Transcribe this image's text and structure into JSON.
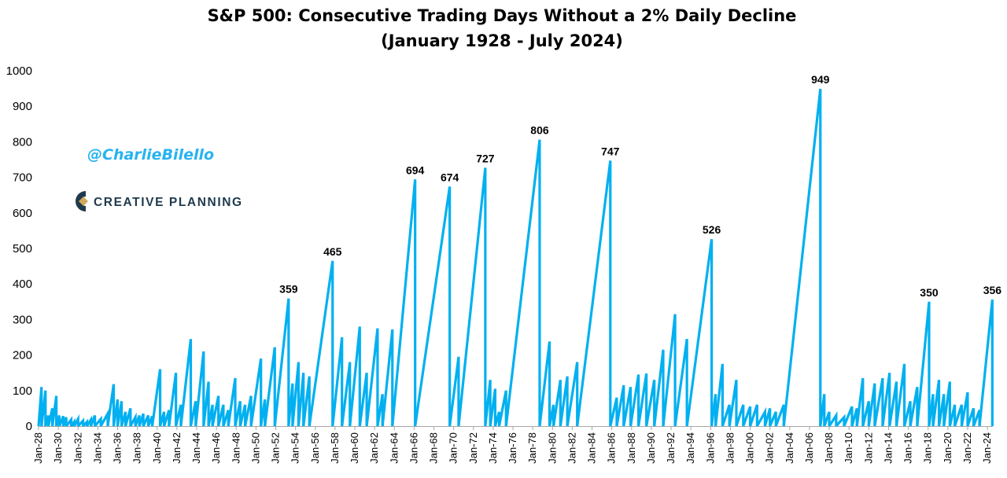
{
  "chart_data": {
    "type": "line",
    "title": "S&P 500: Consecutive Trading Days Without a 2% Daily Decline",
    "subtitle": "(January 1928 - July 2024)",
    "xlabel": "",
    "ylabel": "",
    "ylim": [
      0,
      1000
    ],
    "yticks": [
      0,
      100,
      200,
      300,
      400,
      500,
      600,
      700,
      800,
      900,
      1000
    ],
    "xlim": [
      1928.0,
      2024.55
    ],
    "xtick_labels": [
      "Jan-28",
      "Jan-30",
      "Jan-32",
      "Jan-34",
      "Jan-36",
      "Jan-38",
      "Jan-40",
      "Jan-42",
      "Jan-44",
      "Jan-46",
      "Jan-48",
      "Jan-50",
      "Jan-52",
      "Jan-54",
      "Jan-56",
      "Jan-58",
      "Jan-60",
      "Jan-62",
      "Jan-64",
      "Jan-66",
      "Jan-68",
      "Jan-70",
      "Jan-72",
      "Jan-74",
      "Jan-76",
      "Jan-78",
      "Jan-80",
      "Jan-82",
      "Jan-84",
      "Jan-86",
      "Jan-88",
      "Jan-90",
      "Jan-92",
      "Jan-94",
      "Jan-96",
      "Jan-98",
      "Jan-00",
      "Jan-02",
      "Jan-04",
      "Jan-06",
      "Jan-08",
      "Jan-10",
      "Jan-12",
      "Jan-14",
      "Jan-16",
      "Jan-18",
      "Jan-20",
      "Jan-22",
      "Jan-24"
    ],
    "color": "#00b0f0",
    "grid": false,
    "legend": "none",
    "series": [
      {
        "name": "Consecutive Trading Days Without a 2% Daily Decline",
        "peak_labels": [
          {
            "x": 1953.3,
            "value": 359
          },
          {
            "x": 1957.75,
            "value": 465
          },
          {
            "x": 1966.1,
            "value": 694
          },
          {
            "x": 1969.6,
            "value": 674
          },
          {
            "x": 1973.2,
            "value": 727
          },
          {
            "x": 1978.7,
            "value": 806
          },
          {
            "x": 1985.85,
            "value": 747
          },
          {
            "x": 1996.1,
            "value": 526
          },
          {
            "x": 2007.1,
            "value": 949
          },
          {
            "x": 2018.1,
            "value": 350
          },
          {
            "x": 2024.5,
            "value": 356
          }
        ],
        "runs": [
          [
            1928.0,
            0,
            1928.3,
            110
          ],
          [
            1928.3,
            0,
            1928.7,
            100
          ],
          [
            1928.7,
            0,
            1929.0,
            30
          ],
          [
            1929.0,
            0,
            1929.4,
            50
          ],
          [
            1929.4,
            0,
            1929.8,
            85
          ],
          [
            1929.8,
            0,
            1930.1,
            30
          ],
          [
            1930.1,
            0,
            1930.5,
            28
          ],
          [
            1930.5,
            0,
            1930.8,
            25
          ],
          [
            1930.8,
            0,
            1931.3,
            18
          ],
          [
            1931.3,
            0,
            1931.6,
            12
          ],
          [
            1931.6,
            0,
            1932.0,
            20
          ],
          [
            1932.0,
            0,
            1932.5,
            15
          ],
          [
            1932.5,
            0,
            1932.9,
            12
          ],
          [
            1932.9,
            0,
            1933.3,
            18
          ],
          [
            1933.3,
            0,
            1933.7,
            30
          ],
          [
            1933.7,
            0,
            1934.3,
            20
          ],
          [
            1934.3,
            0,
            1935.0,
            35
          ],
          [
            1935.0,
            0,
            1935.6,
            118
          ],
          [
            1935.6,
            0,
            1936.0,
            75
          ],
          [
            1936.0,
            0,
            1936.4,
            70
          ],
          [
            1936.4,
            0,
            1936.8,
            40
          ],
          [
            1936.8,
            0,
            1937.3,
            50
          ],
          [
            1937.3,
            0,
            1937.8,
            25
          ],
          [
            1937.8,
            0,
            1938.2,
            30
          ],
          [
            1938.2,
            0,
            1938.6,
            35
          ],
          [
            1938.6,
            0,
            1939.1,
            30
          ],
          [
            1939.1,
            0,
            1939.5,
            28
          ],
          [
            1939.5,
            0,
            1940.3,
            160
          ],
          [
            1940.3,
            0,
            1940.7,
            40
          ],
          [
            1940.7,
            0,
            1941.2,
            45
          ],
          [
            1941.2,
            0,
            1941.9,
            150
          ],
          [
            1941.9,
            0,
            1942.4,
            60
          ],
          [
            1942.4,
            0,
            1943.4,
            245
          ],
          [
            1943.4,
            0,
            1943.9,
            70
          ],
          [
            1943.9,
            0,
            1944.7,
            210
          ],
          [
            1944.7,
            0,
            1945.2,
            125
          ],
          [
            1945.2,
            0,
            1945.6,
            60
          ],
          [
            1945.6,
            0,
            1946.2,
            85
          ],
          [
            1946.2,
            0,
            1946.7,
            60
          ],
          [
            1946.7,
            0,
            1947.2,
            45
          ],
          [
            1947.2,
            0,
            1947.9,
            135
          ],
          [
            1947.9,
            0,
            1948.4,
            70
          ],
          [
            1948.4,
            0,
            1948.9,
            60
          ],
          [
            1948.9,
            0,
            1949.5,
            85
          ],
          [
            1949.5,
            0,
            1950.5,
            190
          ],
          [
            1950.5,
            0,
            1950.9,
            75
          ],
          [
            1950.9,
            0,
            1951.9,
            222
          ],
          [
            1951.9,
            0,
            1953.3,
            359
          ],
          [
            1953.3,
            0,
            1953.7,
            120
          ],
          [
            1953.7,
            0,
            1954.3,
            180
          ],
          [
            1954.3,
            0,
            1954.8,
            150
          ],
          [
            1954.8,
            0,
            1955.4,
            140
          ],
          [
            1955.4,
            0,
            1957.75,
            465
          ],
          [
            1957.75,
            0,
            1958.7,
            250
          ],
          [
            1958.7,
            0,
            1959.5,
            180
          ],
          [
            1959.5,
            0,
            1960.5,
            280
          ],
          [
            1960.5,
            0,
            1961.2,
            150
          ],
          [
            1961.2,
            0,
            1962.3,
            275
          ],
          [
            1962.3,
            0,
            1962.8,
            90
          ],
          [
            1962.8,
            0,
            1963.8,
            272
          ],
          [
            1963.8,
            0,
            1966.1,
            694
          ],
          [
            1966.1,
            0,
            1969.6,
            674
          ],
          [
            1969.6,
            0,
            1970.5,
            195
          ],
          [
            1970.5,
            0,
            1973.2,
            727
          ],
          [
            1973.2,
            0,
            1973.7,
            130
          ],
          [
            1973.7,
            0,
            1974.2,
            105
          ],
          [
            1974.2,
            0,
            1974.6,
            40
          ],
          [
            1974.6,
            0,
            1975.3,
            100
          ],
          [
            1975.3,
            0,
            1978.7,
            806
          ],
          [
            1978.7,
            0,
            1979.7,
            238
          ],
          [
            1979.7,
            0,
            1980.1,
            60
          ],
          [
            1980.1,
            0,
            1980.8,
            130
          ],
          [
            1980.8,
            0,
            1981.5,
            140
          ],
          [
            1981.5,
            0,
            1982.5,
            180
          ],
          [
            1982.5,
            0,
            1985.85,
            747
          ],
          [
            1985.85,
            0,
            1986.5,
            80
          ],
          [
            1986.5,
            0,
            1987.2,
            115
          ],
          [
            1987.2,
            0,
            1987.9,
            110
          ],
          [
            1987.9,
            0,
            1988.7,
            145
          ],
          [
            1988.7,
            0,
            1989.5,
            148
          ],
          [
            1989.5,
            0,
            1990.3,
            130
          ],
          [
            1990.3,
            0,
            1991.2,
            215
          ],
          [
            1991.2,
            0,
            1992.4,
            315
          ],
          [
            1992.4,
            0,
            1993.6,
            245
          ],
          [
            1993.6,
            0,
            1996.1,
            526
          ],
          [
            1996.1,
            0,
            1996.5,
            90
          ],
          [
            1996.5,
            0,
            1997.2,
            175
          ],
          [
            1997.2,
            0,
            1997.9,
            60
          ],
          [
            1997.9,
            0,
            1998.6,
            130
          ],
          [
            1998.6,
            0,
            1999.3,
            60
          ],
          [
            1999.3,
            0,
            2000.0,
            55
          ],
          [
            2000.0,
            0,
            2000.7,
            60
          ],
          [
            2000.7,
            0,
            2001.5,
            40
          ],
          [
            2001.5,
            0,
            2002.0,
            50
          ],
          [
            2002.0,
            0,
            2002.6,
            40
          ],
          [
            2002.6,
            0,
            2003.4,
            60
          ],
          [
            2003.4,
            0,
            2007.1,
            949
          ],
          [
            2007.1,
            0,
            2007.5,
            90
          ],
          [
            2007.5,
            0,
            2008.0,
            40
          ],
          [
            2008.0,
            0,
            2008.7,
            30
          ],
          [
            2008.7,
            0,
            2009.5,
            25
          ],
          [
            2009.5,
            0,
            2010.3,
            55
          ],
          [
            2010.3,
            0,
            2010.8,
            50
          ],
          [
            2010.8,
            0,
            2011.4,
            135
          ],
          [
            2011.4,
            0,
            2012.0,
            70
          ],
          [
            2012.0,
            0,
            2012.6,
            120
          ],
          [
            2012.6,
            0,
            2013.4,
            135
          ],
          [
            2013.4,
            0,
            2014.1,
            150
          ],
          [
            2014.1,
            0,
            2014.8,
            125
          ],
          [
            2014.8,
            0,
            2015.6,
            175
          ],
          [
            2015.6,
            0,
            2016.2,
            70
          ],
          [
            2016.2,
            0,
            2016.9,
            110
          ],
          [
            2016.9,
            0,
            2018.1,
            350
          ],
          [
            2018.1,
            0,
            2018.5,
            90
          ],
          [
            2018.5,
            0,
            2019.1,
            130
          ],
          [
            2019.1,
            0,
            2019.6,
            90
          ],
          [
            2019.6,
            0,
            2020.2,
            125
          ],
          [
            2020.2,
            0,
            2020.7,
            60
          ],
          [
            2020.7,
            0,
            2021.4,
            60
          ],
          [
            2021.4,
            0,
            2022.0,
            95
          ],
          [
            2022.0,
            0,
            2022.6,
            50
          ],
          [
            2022.6,
            0,
            2023.2,
            45
          ],
          [
            2023.2,
            0,
            2024.5,
            356
          ]
        ]
      }
    ]
  },
  "branding": {
    "handle": "@CharlieBilello",
    "logo_text": "CREATIVE PLANNING"
  }
}
